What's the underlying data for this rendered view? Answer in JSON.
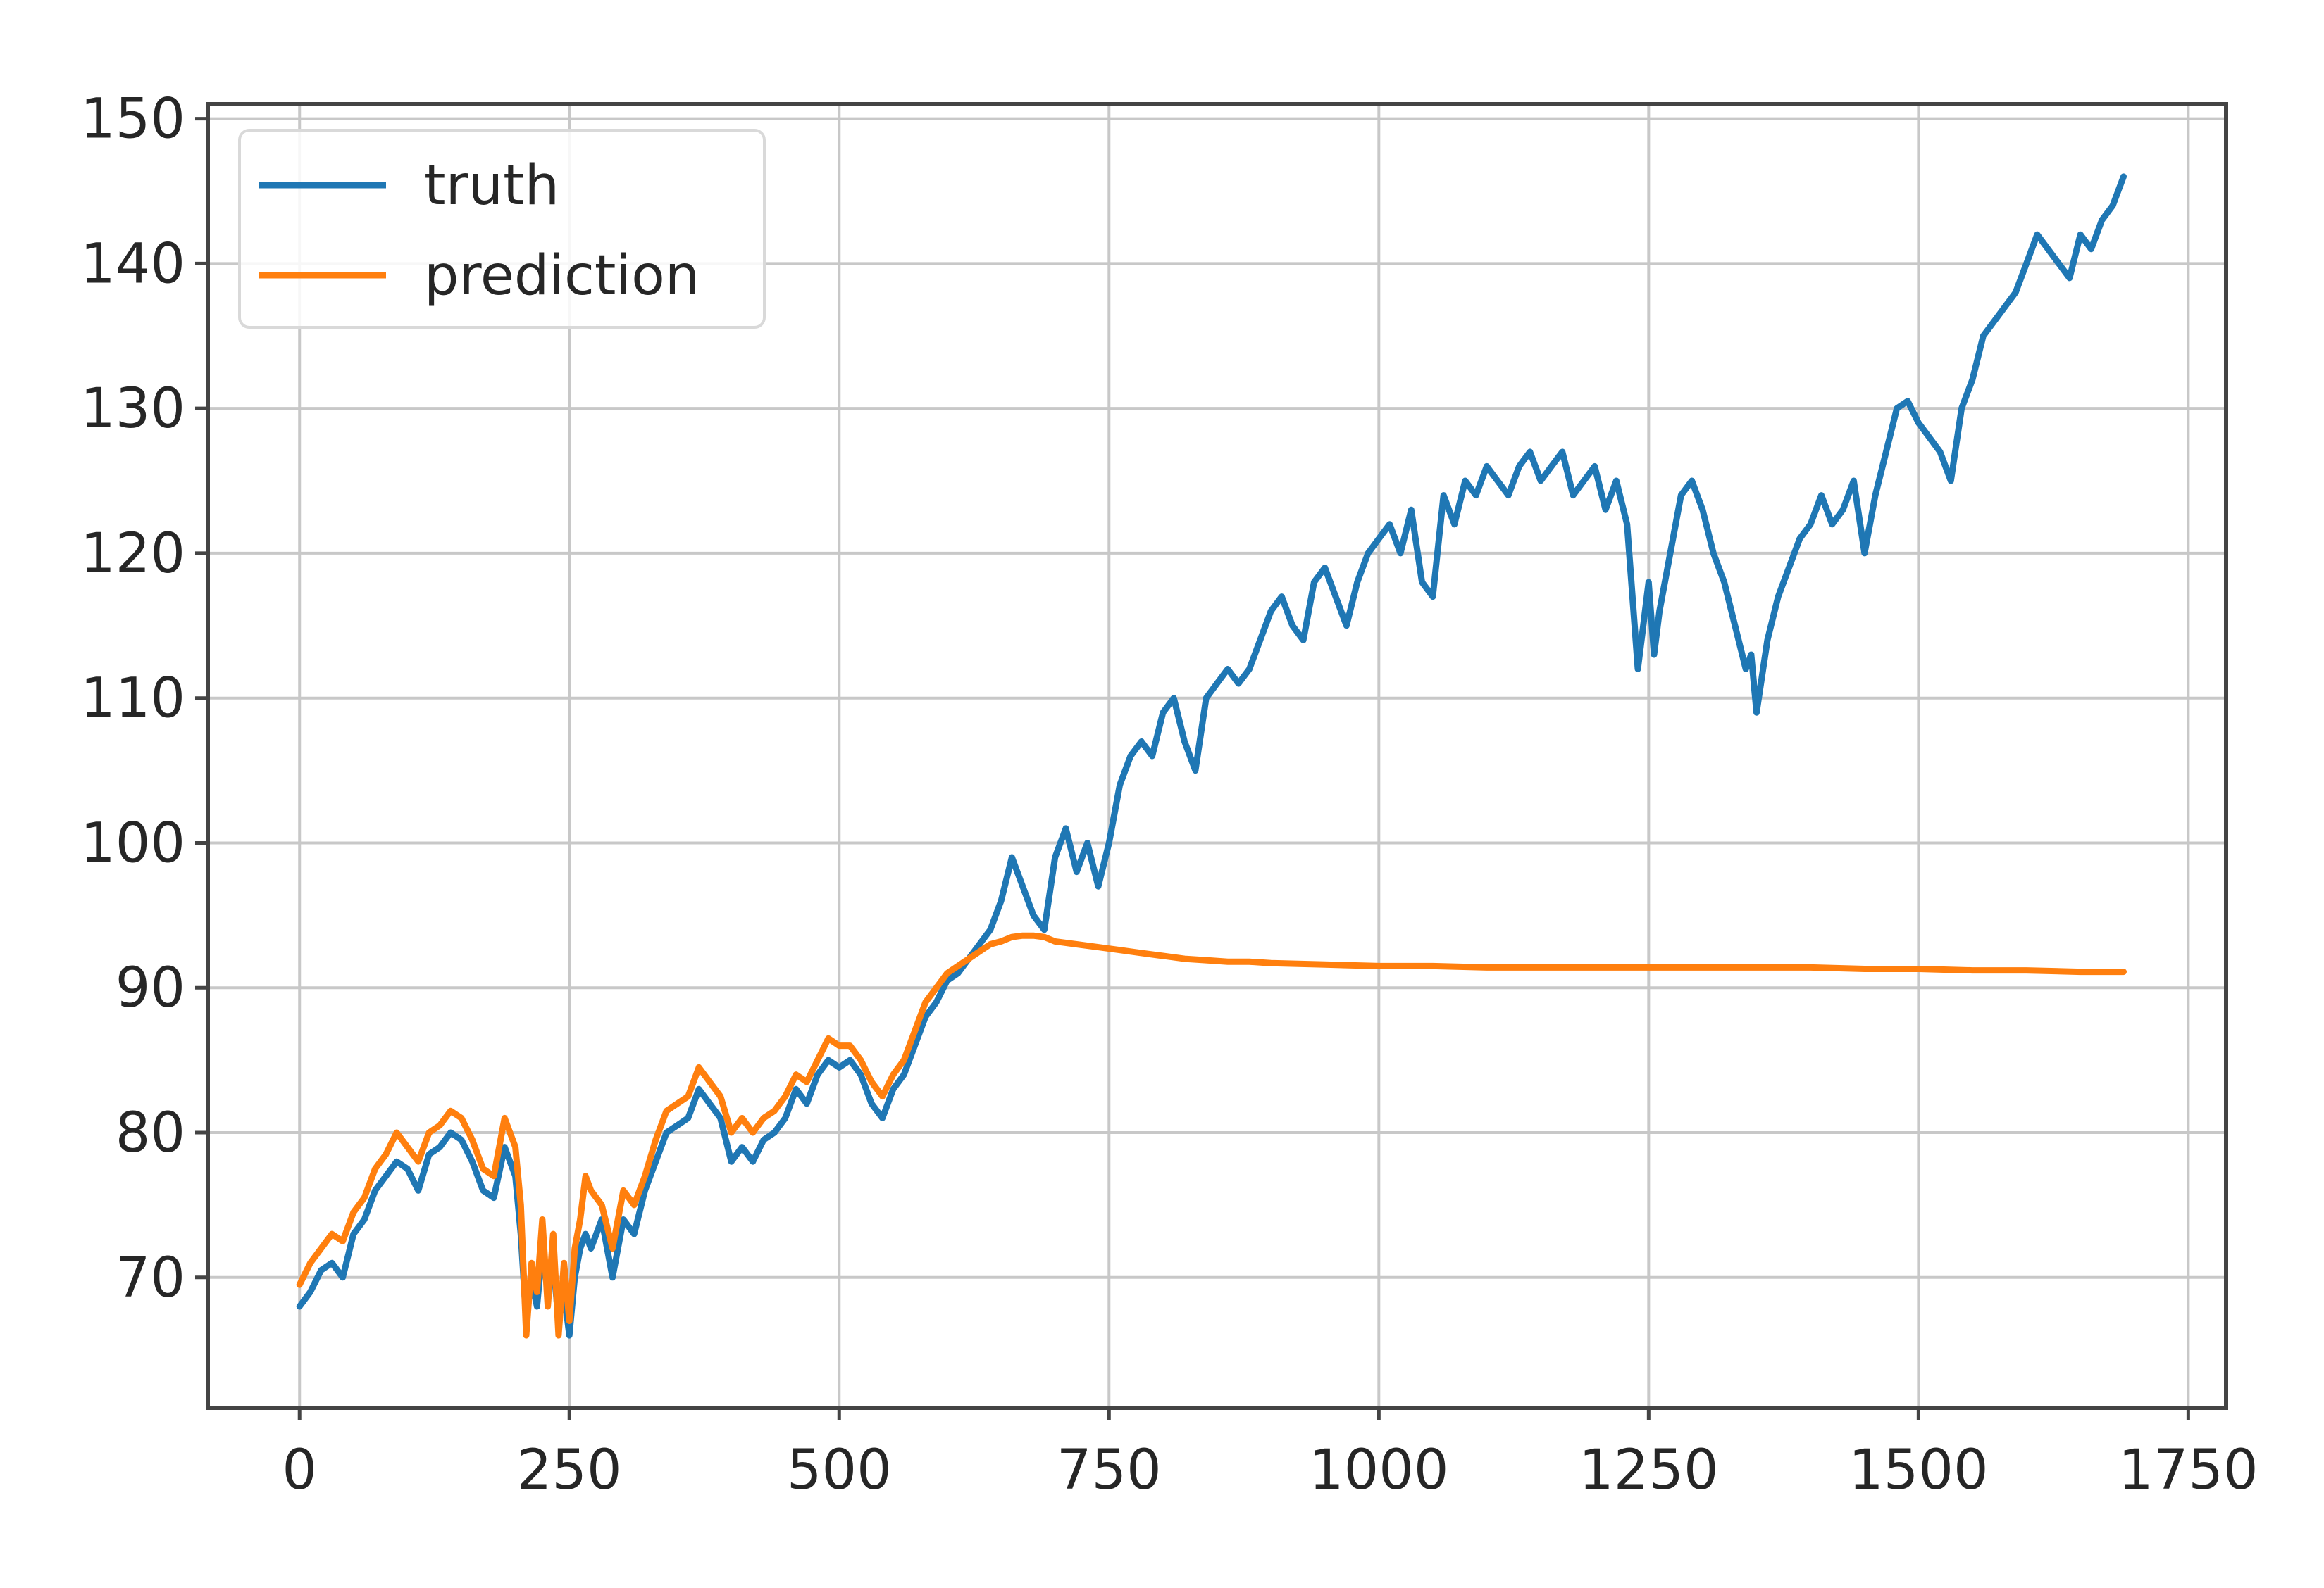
{
  "chart_data": {
    "type": "line",
    "title": "",
    "xlabel": "",
    "ylabel": "",
    "xlim": [
      -85,
      1785
    ],
    "ylim": [
      61,
      151
    ],
    "xticks": [
      0,
      250,
      500,
      750,
      1000,
      1250,
      1500,
      1750
    ],
    "yticks": [
      70,
      80,
      90,
      100,
      110,
      120,
      130,
      140,
      150
    ],
    "grid": true,
    "legend_position": "top-left",
    "series": [
      {
        "name": "truth",
        "color": "#1f77b4",
        "x": [
          0,
          10,
          20,
          30,
          40,
          50,
          60,
          70,
          80,
          90,
          100,
          110,
          120,
          130,
          140,
          150,
          160,
          170,
          180,
          190,
          200,
          205,
          210,
          215,
          220,
          225,
          230,
          235,
          240,
          245,
          250,
          255,
          260,
          265,
          270,
          280,
          290,
          300,
          310,
          320,
          330,
          340,
          350,
          360,
          370,
          380,
          390,
          400,
          410,
          420,
          430,
          440,
          450,
          460,
          470,
          480,
          490,
          500,
          510,
          520,
          530,
          540,
          550,
          560,
          570,
          580,
          590,
          600,
          610,
          620,
          630,
          640,
          650,
          660,
          670,
          680,
          690,
          700,
          710,
          720,
          730,
          740,
          750,
          760,
          770,
          780,
          790,
          800,
          810,
          820,
          830,
          840,
          850,
          860,
          870,
          880,
          890,
          900,
          910,
          920,
          930,
          940,
          950,
          960,
          970,
          980,
          990,
          1000,
          1010,
          1020,
          1030,
          1040,
          1050,
          1060,
          1070,
          1080,
          1090,
          1100,
          1110,
          1120,
          1130,
          1140,
          1150,
          1160,
          1170,
          1180,
          1190,
          1200,
          1210,
          1220,
          1230,
          1240,
          1245,
          1250,
          1255,
          1260,
          1270,
          1280,
          1290,
          1300,
          1310,
          1320,
          1330,
          1340,
          1345,
          1350,
          1360,
          1370,
          1380,
          1390,
          1400,
          1410,
          1420,
          1430,
          1440,
          1450,
          1460,
          1470,
          1480,
          1490,
          1500,
          1510,
          1520,
          1530,
          1540,
          1550,
          1560,
          1570,
          1580,
          1590,
          1600,
          1610,
          1620,
          1630,
          1640,
          1650,
          1660,
          1670,
          1680,
          1690
        ],
        "y": [
          68,
          69,
          70.5,
          71,
          70,
          73,
          74,
          76,
          77,
          78,
          77.5,
          76,
          78.5,
          79,
          80,
          79.5,
          78,
          76,
          75.5,
          79,
          77,
          73,
          67,
          70,
          68,
          72,
          70,
          71,
          67,
          69,
          66,
          70,
          72,
          73,
          72,
          74,
          70,
          74,
          73,
          76,
          78,
          80,
          80.5,
          81,
          83,
          82,
          81,
          78,
          79,
          78,
          79.5,
          80,
          81,
          83,
          82,
          84,
          85,
          84.5,
          85,
          84,
          82,
          81,
          83,
          84,
          86,
          88,
          89,
          90.5,
          91,
          92,
          93,
          94,
          96,
          99,
          97,
          95,
          94,
          99,
          101,
          98,
          100,
          97,
          100,
          104,
          106,
          107,
          106,
          109,
          110,
          107,
          105,
          110,
          111,
          112,
          111,
          112,
          114,
          116,
          117,
          115,
          114,
          118,
          119,
          117,
          115,
          118,
          120,
          121,
          122,
          120,
          123,
          118,
          117,
          124,
          122,
          125,
          124,
          126,
          125,
          124,
          126,
          127,
          125,
          126,
          127,
          124,
          125,
          126,
          123,
          125,
          122,
          112,
          115,
          118,
          113,
          116,
          120,
          124,
          125,
          123,
          120,
          118,
          115,
          112,
          113,
          109,
          114,
          117,
          119,
          121,
          122,
          124,
          122,
          123,
          125,
          120,
          124,
          127,
          130,
          130.5,
          129,
          128,
          127,
          125,
          130,
          132,
          135,
          136,
          137,
          138,
          140,
          142,
          141,
          140,
          139,
          142,
          141,
          143,
          144,
          146
        ]
      },
      {
        "name": "prediction",
        "color": "#ff7f0e",
        "x": [
          0,
          10,
          20,
          30,
          40,
          50,
          60,
          70,
          80,
          90,
          100,
          110,
          120,
          130,
          140,
          150,
          160,
          170,
          180,
          190,
          200,
          205,
          210,
          215,
          220,
          225,
          230,
          235,
          240,
          245,
          250,
          255,
          260,
          265,
          270,
          280,
          290,
          300,
          310,
          320,
          330,
          340,
          350,
          360,
          370,
          380,
          390,
          400,
          410,
          420,
          430,
          440,
          450,
          460,
          470,
          480,
          490,
          500,
          510,
          520,
          530,
          540,
          550,
          560,
          570,
          580,
          590,
          600,
          610,
          620,
          630,
          640,
          650,
          660,
          670,
          680,
          690,
          700,
          720,
          740,
          760,
          780,
          800,
          820,
          840,
          860,
          880,
          900,
          950,
          1000,
          1050,
          1100,
          1150,
          1200,
          1250,
          1300,
          1350,
          1400,
          1450,
          1500,
          1550,
          1600,
          1650,
          1690
        ],
        "y": [
          69.5,
          71,
          72,
          73,
          72.5,
          74.5,
          75.5,
          77.5,
          78.5,
          80,
          79,
          78,
          80,
          80.5,
          81.5,
          81,
          79.5,
          77.5,
          77,
          81,
          79,
          75,
          66,
          71,
          69,
          74,
          68,
          73,
          66,
          71,
          67,
          72,
          74,
          77,
          76,
          75,
          72,
          76,
          75,
          77,
          79.5,
          81.5,
          82,
          82.5,
          84.5,
          83.5,
          82.5,
          80,
          81,
          80,
          81,
          81.5,
          82.5,
          84,
          83.5,
          85,
          86.5,
          86,
          86,
          85,
          83.5,
          82.5,
          84,
          85,
          87,
          89,
          90,
          91,
          91.5,
          92,
          92.5,
          93,
          93.2,
          93.5,
          93.6,
          93.6,
          93.5,
          93.2,
          93,
          92.8,
          92.6,
          92.4,
          92.2,
          92,
          91.9,
          91.8,
          91.8,
          91.7,
          91.6,
          91.5,
          91.5,
          91.4,
          91.4,
          91.4,
          91.4,
          91.4,
          91.4,
          91.4,
          91.3,
          91.3,
          91.2,
          91.2,
          91.1,
          91.1
        ]
      }
    ]
  }
}
